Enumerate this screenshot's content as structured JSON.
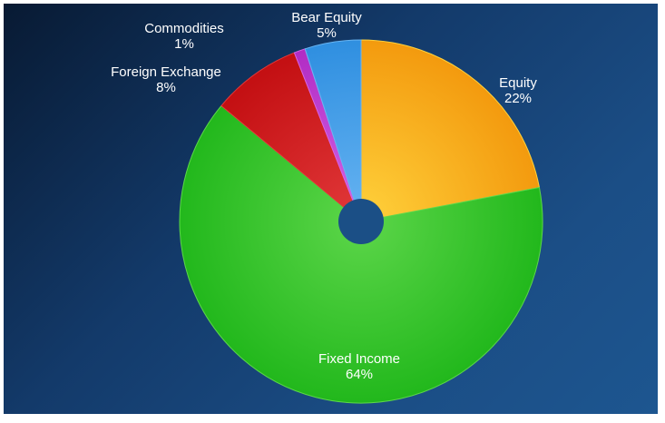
{
  "chart_data": {
    "type": "pie",
    "title": "",
    "slices": [
      {
        "label": "Equity",
        "value": 22,
        "value_label": "22%",
        "color": "#f39a0e",
        "color_light": "#ffd23c"
      },
      {
        "label": "Fixed Income",
        "value": 64,
        "value_label": "64%",
        "color": "#22b81c",
        "color_light": "#5dd64a"
      },
      {
        "label": "Foreign Exchange",
        "value": 8,
        "value_label": "8%",
        "color": "#c30f12",
        "color_light": "#e2393a"
      },
      {
        "label": "Commodities",
        "value": 1,
        "value_label": "1%",
        "color": "#b12cc4",
        "color_light": "#d565e6"
      },
      {
        "label": "Bear Equity",
        "value": 5,
        "value_label": "5%",
        "color": "#2f8fe0",
        "color_light": "#67b4f2"
      }
    ],
    "donut_hole": true,
    "legend": "none"
  }
}
